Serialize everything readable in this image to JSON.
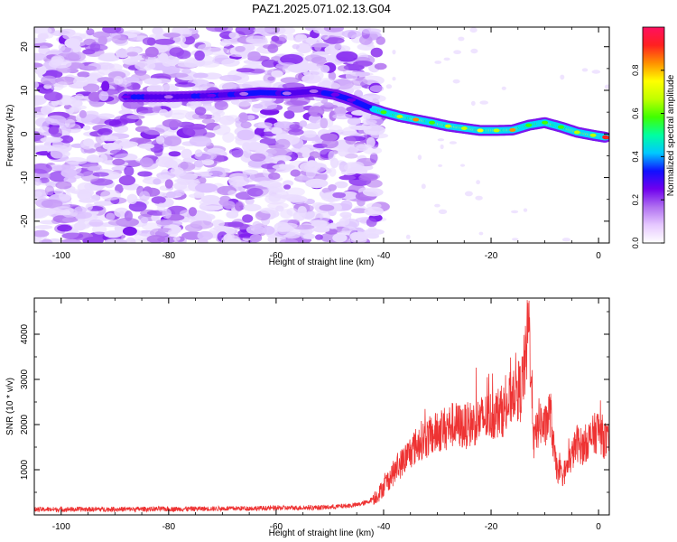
{
  "title": "PAZ1.2025.071.02.13.G04",
  "chart_data": [
    {
      "type": "heatmap",
      "panel": "top",
      "xlabel": "Height of straight line (km)",
      "ylabel": "Frequency (Hz)",
      "xlim": [
        -105,
        2
      ],
      "ylim": [
        -25,
        24.5
      ],
      "xticks": [
        -100,
        -80,
        -60,
        -40,
        -20,
        0
      ],
      "yticks": [
        -20,
        -10,
        0,
        10,
        20
      ],
      "colorbar": {
        "label": "Normalized spectral amplitude",
        "range": [
          0,
          1
        ],
        "ticks": [
          "0.0",
          "0.2",
          "0.4",
          "0.6",
          "0.8"
        ],
        "tick_values": [
          0,
          0.2,
          0.4,
          0.6,
          0.8
        ],
        "colors": [
          "#ffffff",
          "#e6c8ff",
          "#b070f0",
          "#7000ee",
          "#1010ff",
          "#00c8ff",
          "#00ffa0",
          "#40ff00",
          "#c0ff00",
          "#ffff00",
          "#ff9000",
          "#ff2020",
          "#ff1060"
        ]
      },
      "ridge": [
        {
          "x": -88,
          "y": 8.5,
          "v": 0.25
        },
        {
          "x": -80,
          "y": 8.5,
          "v": 0.15
        },
        {
          "x": -72,
          "y": 8.8,
          "v": 0.22
        },
        {
          "x": -66,
          "y": 9.2,
          "v": 0.18
        },
        {
          "x": -63,
          "y": 9.5,
          "v": 0.3
        },
        {
          "x": -58,
          "y": 9.3,
          "v": 0.2
        },
        {
          "x": -53,
          "y": 9.8,
          "v": 0.15
        },
        {
          "x": -49,
          "y": 9.0,
          "v": 0.25
        },
        {
          "x": -46,
          "y": 7.8,
          "v": 0.22
        },
        {
          "x": -43,
          "y": 6.2,
          "v": 0.35
        },
        {
          "x": -40,
          "y": 5.0,
          "v": 0.55
        },
        {
          "x": -37,
          "y": 4.0,
          "v": 0.65
        },
        {
          "x": -34,
          "y": 3.3,
          "v": 0.8
        },
        {
          "x": -31,
          "y": 2.6,
          "v": 0.6
        },
        {
          "x": -28,
          "y": 1.8,
          "v": 0.7
        },
        {
          "x": -25,
          "y": 1.3,
          "v": 0.65
        },
        {
          "x": -22,
          "y": 0.8,
          "v": 0.75
        },
        {
          "x": -19,
          "y": 0.8,
          "v": 0.7
        },
        {
          "x": -16,
          "y": 0.9,
          "v": 0.8
        },
        {
          "x": -13,
          "y": 2.0,
          "v": 0.55
        },
        {
          "x": -10,
          "y": 2.6,
          "v": 0.6
        },
        {
          "x": -7,
          "y": 1.6,
          "v": 0.55
        },
        {
          "x": -4,
          "y": 0.4,
          "v": 0.65
        },
        {
          "x": -1,
          "y": -0.3,
          "v": 0.7
        },
        {
          "x": 1.5,
          "y": -0.8,
          "v": 0.9
        }
      ]
    },
    {
      "type": "line",
      "panel": "bottom",
      "xlabel": "Height of straight line (km)",
      "ylabel": "SNR (10 * v/v)",
      "xlim": [
        -105,
        2
      ],
      "ylim": [
        0,
        4800
      ],
      "xticks": [
        -100,
        -80,
        -60,
        -40,
        -20,
        0
      ],
      "yticks": [
        1000,
        2000,
        3000,
        4000
      ],
      "color": "#ee3333",
      "envelope": [
        {
          "x": -105,
          "y": 120
        },
        {
          "x": -80,
          "y": 130
        },
        {
          "x": -60,
          "y": 150
        },
        {
          "x": -50,
          "y": 170
        },
        {
          "x": -45,
          "y": 220
        },
        {
          "x": -43,
          "y": 280
        },
        {
          "x": -41,
          "y": 450
        },
        {
          "x": -39,
          "y": 800
        },
        {
          "x": -37,
          "y": 1100
        },
        {
          "x": -35,
          "y": 1400
        },
        {
          "x": -33,
          "y": 1650
        },
        {
          "x": -31,
          "y": 1750
        },
        {
          "x": -29,
          "y": 1900
        },
        {
          "x": -27,
          "y": 2000
        },
        {
          "x": -25,
          "y": 1950
        },
        {
          "x": -23,
          "y": 2050
        },
        {
          "x": -21,
          "y": 2150
        },
        {
          "x": -19,
          "y": 2250
        },
        {
          "x": -17,
          "y": 2350
        },
        {
          "x": -15.5,
          "y": 2900
        },
        {
          "x": -14.5,
          "y": 2700
        },
        {
          "x": -13.5,
          "y": 3500
        },
        {
          "x": -13,
          "y": 4300
        },
        {
          "x": -12.5,
          "y": 3000
        },
        {
          "x": -12,
          "y": 1600
        },
        {
          "x": -11,
          "y": 2100
        },
        {
          "x": -10,
          "y": 1900
        },
        {
          "x": -9,
          "y": 2300
        },
        {
          "x": -8.5,
          "y": 1700
        },
        {
          "x": -8,
          "y": 1100
        },
        {
          "x": -7,
          "y": 850
        },
        {
          "x": -6,
          "y": 1000
        },
        {
          "x": -5,
          "y": 1300
        },
        {
          "x": -4,
          "y": 1600
        },
        {
          "x": -3,
          "y": 1500
        },
        {
          "x": -2,
          "y": 1650
        },
        {
          "x": -1,
          "y": 1750
        },
        {
          "x": 0,
          "y": 1900
        },
        {
          "x": 1,
          "y": 1700
        },
        {
          "x": 2,
          "y": 1500
        }
      ]
    }
  ]
}
